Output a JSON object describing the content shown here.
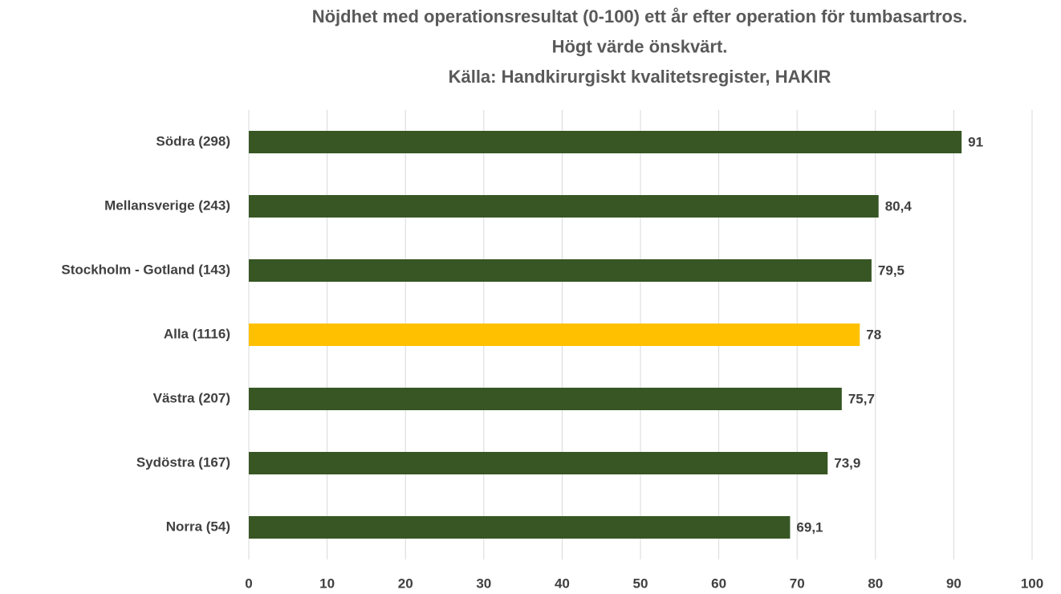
{
  "chart_data": {
    "type": "bar",
    "orientation": "horizontal",
    "title": [
      "Nöjdhet med operationsresultat (0-100) ett år efter operation för tumbasartros.",
      "Högt värde önskvärt.",
      "Källa: Handkirurgiskt kvalitetsregister, HAKIR"
    ],
    "categories": [
      "Södra (298)",
      "Mellansverige (243)",
      "Stockholm - Gotland (143)",
      "Alla (1116)",
      "Västra (207)",
      "Sydöstra (167)",
      "Norra (54)"
    ],
    "values": [
      91,
      80.4,
      79.5,
      78,
      75.7,
      73.9,
      69.1
    ],
    "value_labels": [
      "91",
      "80,4",
      "79,5",
      "78",
      "75,7",
      "73,9",
      "69,1"
    ],
    "colors": [
      "#375623",
      "#375623",
      "#375623",
      "#ffc000",
      "#375623",
      "#375623",
      "#375623"
    ],
    "xlim": [
      0,
      100
    ],
    "xticks": [
      0,
      10,
      20,
      30,
      40,
      50,
      60,
      70,
      80,
      90,
      100
    ],
    "grid": true
  }
}
